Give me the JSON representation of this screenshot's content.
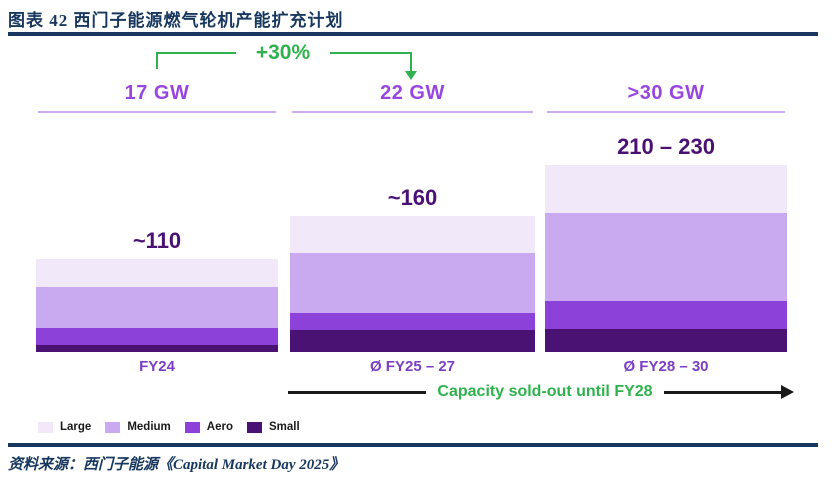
{
  "page": {
    "title": "图表 42  西门子能源燃气轮机产能扩充计划",
    "source": "资料来源：西门子能源《Capital Market Day 2025》"
  },
  "colors": {
    "navy": "#17375E",
    "green": "#2FB24D",
    "capacity_header_purple": "#9747E0",
    "axis_label_purple": "#7C3EC4",
    "total_label_purple": "#4A1175",
    "column_divider_purple": "#CDADEF",
    "arrow_black": "#1A1A1A"
  },
  "annotations": {
    "growth": "+30%",
    "soldout": "Capacity sold-out until FY28"
  },
  "chart_data": {
    "type": "bar",
    "stacked": true,
    "title": "图表 42  西门子能源燃气轮机产能扩充计划",
    "categories": [
      "FY24",
      "Ø FY25 – 27",
      "Ø FY28 – 30"
    ],
    "capacity_headers": [
      "17 GW",
      "22 GW",
      ">30 GW"
    ],
    "total_labels": [
      "~110",
      "~160",
      "210 – 230"
    ],
    "totals": [
      110,
      160,
      220
    ],
    "series": [
      {
        "name": "Large",
        "color": "#F1E8FA",
        "values": [
          33,
          43,
          56
        ]
      },
      {
        "name": "Medium",
        "color": "#C9A9EF",
        "values": [
          49,
          71,
          104
        ]
      },
      {
        "name": "Aero",
        "color": "#8C42D8",
        "values": [
          20,
          20,
          33
        ]
      },
      {
        "name": "Small",
        "color": "#4A1272",
        "values": [
          8,
          26,
          27
        ]
      }
    ],
    "growth_annotation": "+30%",
    "footer_annotation": "Capacity sold-out until FY28",
    "legend_entries": [
      "Large",
      "Medium",
      "Aero",
      "Small"
    ],
    "legend_position": "bottom-left",
    "grid": false
  }
}
